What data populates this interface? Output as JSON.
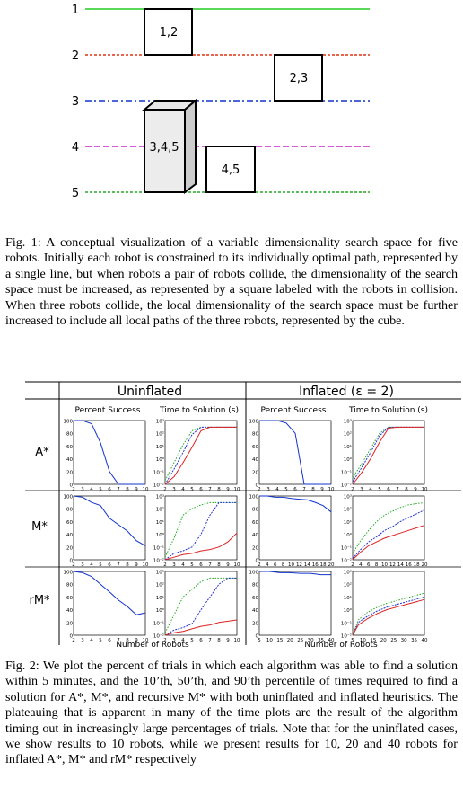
{
  "figure1": {
    "path_labels": [
      "1",
      "2",
      "3",
      "4",
      "5"
    ],
    "path_colors": [
      "#22cc22",
      "#dd3311",
      "#1133cc",
      "#cc22cc",
      "#22aa22"
    ],
    "boxes": [
      "1,2",
      "2,3",
      "3,4,5",
      "4,5"
    ],
    "caption": "Fig. 1: A conceptual visualization of a variable dimensionality search space for five robots. Initially each robot is constrained to its individually optimal path, represented by a single line, but when robots a pair of robots collide, the dimensionality of the search space must be increased, as represented by a square labeled with the robots in collision. When three robots collide, the local dimensionality of the search space must be further increased to include all local paths of the three robots, represented by the cube."
  },
  "figure2": {
    "col_headers": [
      "Uninflated",
      "Inflated (ε = 2)"
    ],
    "sub_headers": [
      "Percent Success",
      "Time to Solution (s)",
      "Percent Success",
      "Time to Solution (s)"
    ],
    "row_labels": [
      "A*",
      "M*",
      "rM*"
    ],
    "x_axis_label": "Number of Robots",
    "caption": "Fig. 2: We plot the percent of trials in which each algorithm was able to find a solution within 5 minutes, and the 10’th, 50’th, and 90’th percentile of times required to find a solution for A*, M*, and recursive M* with both uninflated and inflated heuristics. The plateauing that is apparent in many of the time plots are the result of the algorithm timing out in increasingly large percentages of trials. Note that for the uninflated cases, we show results to 10 robots, while we present results for 10, 20 and 40 robots for inflated A*, M* and rM* respectively"
  },
  "chart_data": [
    {
      "type": "line",
      "panel": "A* uninflated percent success",
      "x": [
        2,
        3,
        4,
        5,
        6,
        7,
        8,
        9,
        10
      ],
      "series": [
        {
          "values": [
            100,
            100,
            95,
            65,
            20,
            0,
            0,
            0,
            0
          ]
        }
      ],
      "yticks": [
        "100",
        "80",
        "60",
        "40",
        "20",
        "0"
      ],
      "xticks": [
        "2",
        "3",
        "4",
        "5",
        "6",
        "7",
        "8",
        "9",
        "10"
      ],
      "ylim": [
        0,
        100
      ]
    },
    {
      "type": "line",
      "panel": "A* uninflated time to solution",
      "log_y": true,
      "x": [
        2,
        3,
        4,
        5,
        6,
        7,
        8,
        9,
        10
      ],
      "series": [
        {
          "color": "#22aa22",
          "values": [
            -1.7,
            -0.3,
            1.1,
            2.2,
            2.48,
            2.48,
            2.48,
            2.48,
            2.48
          ]
        },
        {
          "color": "#2233cc",
          "values": [
            -2,
            -0.8,
            0.5,
            1.9,
            2.48,
            2.48,
            2.48,
            2.48,
            2.48
          ]
        },
        {
          "color": "#dd2222",
          "values": [
            -2,
            -1.4,
            -0.3,
            0.9,
            2.2,
            2.48,
            2.48,
            2.48,
            2.48
          ]
        }
      ],
      "yticks": [
        "10³",
        "10²",
        "10¹",
        "10⁰",
        "10⁻¹",
        "10⁻²"
      ],
      "xticks": [
        "2",
        "3",
        "4",
        "5",
        "6",
        "7",
        "8",
        "9",
        "10"
      ],
      "ylim": [
        -2,
        3
      ]
    },
    {
      "type": "line",
      "panel": "A* inflated percent success",
      "x": [
        2,
        3,
        4,
        5,
        6,
        7,
        8,
        9,
        10
      ],
      "series": [
        {
          "values": [
            100,
            100,
            100,
            96,
            80,
            0,
            0,
            0,
            0
          ]
        }
      ],
      "yticks": [
        "100",
        "80",
        "60",
        "40",
        "20",
        "0"
      ],
      "xticks": [
        "2",
        "3",
        "4",
        "5",
        "6",
        "7",
        "8",
        "9",
        "10"
      ],
      "ylim": [
        0,
        100
      ]
    },
    {
      "type": "line",
      "panel": "A* inflated time to solution",
      "log_y": true,
      "x": [
        2,
        3,
        4,
        5,
        6,
        7,
        8,
        9,
        10
      ],
      "series": [
        {
          "color": "#22aa22",
          "values": [
            -1.5,
            -0.4,
            0.8,
            2.0,
            2.48,
            2.48,
            2.48,
            2.48,
            2.48
          ]
        },
        {
          "color": "#2233cc",
          "values": [
            -1.8,
            -0.7,
            0.5,
            1.8,
            2.48,
            2.48,
            2.48,
            2.48,
            2.48
          ]
        },
        {
          "color": "#dd2222",
          "values": [
            -2,
            -1.1,
            0,
            1.3,
            2.4,
            2.48,
            2.48,
            2.48,
            2.48
          ]
        }
      ],
      "yticks": [
        "10³",
        "10²",
        "10¹",
        "10⁰",
        "10⁻¹",
        "10⁻²"
      ],
      "xticks": [
        "2",
        "3",
        "4",
        "5",
        "6",
        "7",
        "8",
        "9",
        "10"
      ],
      "ylim": [
        -2,
        3
      ]
    },
    {
      "type": "line",
      "panel": "M* uninflated percent success",
      "x": [
        2,
        3,
        4,
        5,
        6,
        7,
        8,
        9,
        10
      ],
      "series": [
        {
          "values": [
            100,
            98,
            90,
            85,
            65,
            55,
            45,
            30,
            22
          ]
        }
      ],
      "yticks": [
        "100",
        "80",
        "60",
        "40",
        "20",
        "0"
      ],
      "xticks": [
        "2",
        "3",
        "4",
        "5",
        "6",
        "7",
        "8",
        "9",
        "10"
      ],
      "ylim": [
        0,
        100
      ]
    },
    {
      "type": "line",
      "panel": "M* uninflated time to solution",
      "log_y": true,
      "x": [
        2,
        3,
        4,
        5,
        6,
        7,
        8,
        9,
        10
      ],
      "series": [
        {
          "color": "#22aa22",
          "values": [
            -1.8,
            -0.3,
            1.5,
            2.0,
            2.3,
            2.48,
            2.48,
            2.48,
            2.48
          ]
        },
        {
          "color": "#2233cc",
          "values": [
            -2,
            -1.5,
            -1.3,
            -1.0,
            0,
            1.5,
            2.48,
            2.48,
            2.48
          ]
        },
        {
          "color": "#dd2222",
          "values": [
            -2,
            -1.8,
            -1.6,
            -1.5,
            -1.3,
            -1.2,
            -1.0,
            -0.6,
            0.1
          ]
        }
      ],
      "yticks": [
        "10³",
        "10²",
        "10¹",
        "10⁰",
        "10⁻¹",
        "10⁻²"
      ],
      "xticks": [
        "2",
        "3",
        "4",
        "5",
        "6",
        "7",
        "8",
        "9",
        "10"
      ],
      "ylim": [
        -2,
        3
      ]
    },
    {
      "type": "line",
      "panel": "M* inflated percent success",
      "x": [
        2,
        4,
        6,
        8,
        10,
        12,
        14,
        16,
        18,
        20
      ],
      "series": [
        {
          "values": [
            100,
            100,
            98,
            98,
            96,
            95,
            94,
            90,
            85,
            75
          ]
        }
      ],
      "yticks": [
        "100",
        "80",
        "60",
        "40",
        "20",
        "0"
      ],
      "xticks": [
        "2",
        "4",
        "6",
        "8",
        "10",
        "12",
        "14",
        "16",
        "18",
        "20"
      ],
      "ylim": [
        0,
        100
      ]
    },
    {
      "type": "line",
      "panel": "M* inflated time to solution",
      "log_y": true,
      "x": [
        2,
        4,
        6,
        8,
        10,
        12,
        14,
        16,
        18,
        20
      ],
      "series": [
        {
          "color": "#22aa22",
          "values": [
            -1.5,
            -0.5,
            0.3,
            1.0,
            1.5,
            1.8,
            2.1,
            2.3,
            2.4,
            2.48
          ]
        },
        {
          "color": "#2233cc",
          "values": [
            -1.9,
            -1.2,
            -0.6,
            -0.2,
            0.3,
            0.6,
            1.0,
            1.3,
            1.6,
            1.9
          ]
        },
        {
          "color": "#dd2222",
          "values": [
            -2,
            -1.4,
            -0.9,
            -0.6,
            -0.3,
            -0.1,
            0.1,
            0.3,
            0.5,
            0.7
          ]
        }
      ],
      "yticks": [
        "10³",
        "10²",
        "10¹",
        "10⁰",
        "10⁻¹",
        "10⁻²"
      ],
      "xticks": [
        "2",
        "4",
        "6",
        "8",
        "10",
        "12",
        "14",
        "16",
        "18",
        "20"
      ],
      "ylim": [
        -2,
        3
      ]
    },
    {
      "type": "line",
      "panel": "rM* uninflated percent success",
      "x": [
        2,
        3,
        4,
        5,
        6,
        7,
        8,
        9,
        10
      ],
      "series": [
        {
          "values": [
            100,
            98,
            92,
            80,
            68,
            55,
            45,
            32,
            35
          ]
        }
      ],
      "yticks": [
        "100",
        "80",
        "60",
        "40",
        "20",
        "0"
      ],
      "xticks": [
        "2",
        "3",
        "4",
        "5",
        "6",
        "7",
        "8",
        "9",
        "10"
      ],
      "ylim": [
        0,
        100
      ]
    },
    {
      "type": "line",
      "panel": "rM* uninflated time to solution",
      "log_y": true,
      "x": [
        2,
        3,
        4,
        5,
        6,
        7,
        8,
        9,
        10
      ],
      "series": [
        {
          "color": "#22aa22",
          "values": [
            -1.8,
            -0.4,
            1.0,
            1.6,
            2.2,
            2.48,
            2.48,
            2.48,
            2.48
          ]
        },
        {
          "color": "#2233cc",
          "values": [
            -2,
            -1.6,
            -1.4,
            -1.1,
            0,
            1.0,
            2.0,
            2.48,
            2.48
          ]
        },
        {
          "color": "#dd2222",
          "values": [
            -2,
            -1.8,
            -1.7,
            -1.5,
            -1.3,
            -1.2,
            -1.0,
            -0.9,
            -0.8
          ]
        }
      ],
      "yticks": [
        "10³",
        "10²",
        "10¹",
        "10⁰",
        "10⁻¹",
        "10⁻²"
      ],
      "xticks": [
        "2",
        "3",
        "4",
        "5",
        "6",
        "7",
        "8",
        "9",
        "10"
      ],
      "ylim": [
        -2,
        3
      ]
    },
    {
      "type": "line",
      "panel": "rM* inflated percent success",
      "x": [
        5,
        10,
        15,
        20,
        25,
        30,
        35,
        40
      ],
      "series": [
        {
          "values": [
            100,
            100,
            98,
            98,
            97,
            97,
            95,
            95
          ]
        }
      ],
      "yticks": [
        "100",
        "80",
        "60",
        "40",
        "20",
        "0"
      ],
      "xticks": [
        "5",
        "10",
        "15",
        "20",
        "25",
        "30",
        "35",
        "40"
      ],
      "ylim": [
        0,
        100
      ]
    },
    {
      "type": "line",
      "panel": "rM* inflated time to solution",
      "log_y": true,
      "x": [
        2,
        5,
        10,
        15,
        20,
        25,
        30,
        35,
        40
      ],
      "series": [
        {
          "color": "#22aa22",
          "values": [
            -2,
            -0.8,
            -0.2,
            0.2,
            0.5,
            0.7,
            0.9,
            1.1,
            1.3
          ]
        },
        {
          "color": "#2233cc",
          "values": [
            -2,
            -1.0,
            -0.5,
            -0.1,
            0.2,
            0.4,
            0.6,
            0.8,
            1.0
          ]
        },
        {
          "color": "#dd2222",
          "values": [
            -2,
            -1.2,
            -0.7,
            -0.3,
            0,
            0.2,
            0.4,
            0.6,
            0.8
          ]
        }
      ],
      "yticks": [
        "10³",
        "10²",
        "10¹",
        "10⁰",
        "10⁻¹",
        "10⁻²"
      ],
      "xticks": [
        "5",
        "10",
        "15",
        "20",
        "25",
        "30",
        "35",
        "40"
      ],
      "ylim": [
        -2,
        3
      ]
    }
  ]
}
